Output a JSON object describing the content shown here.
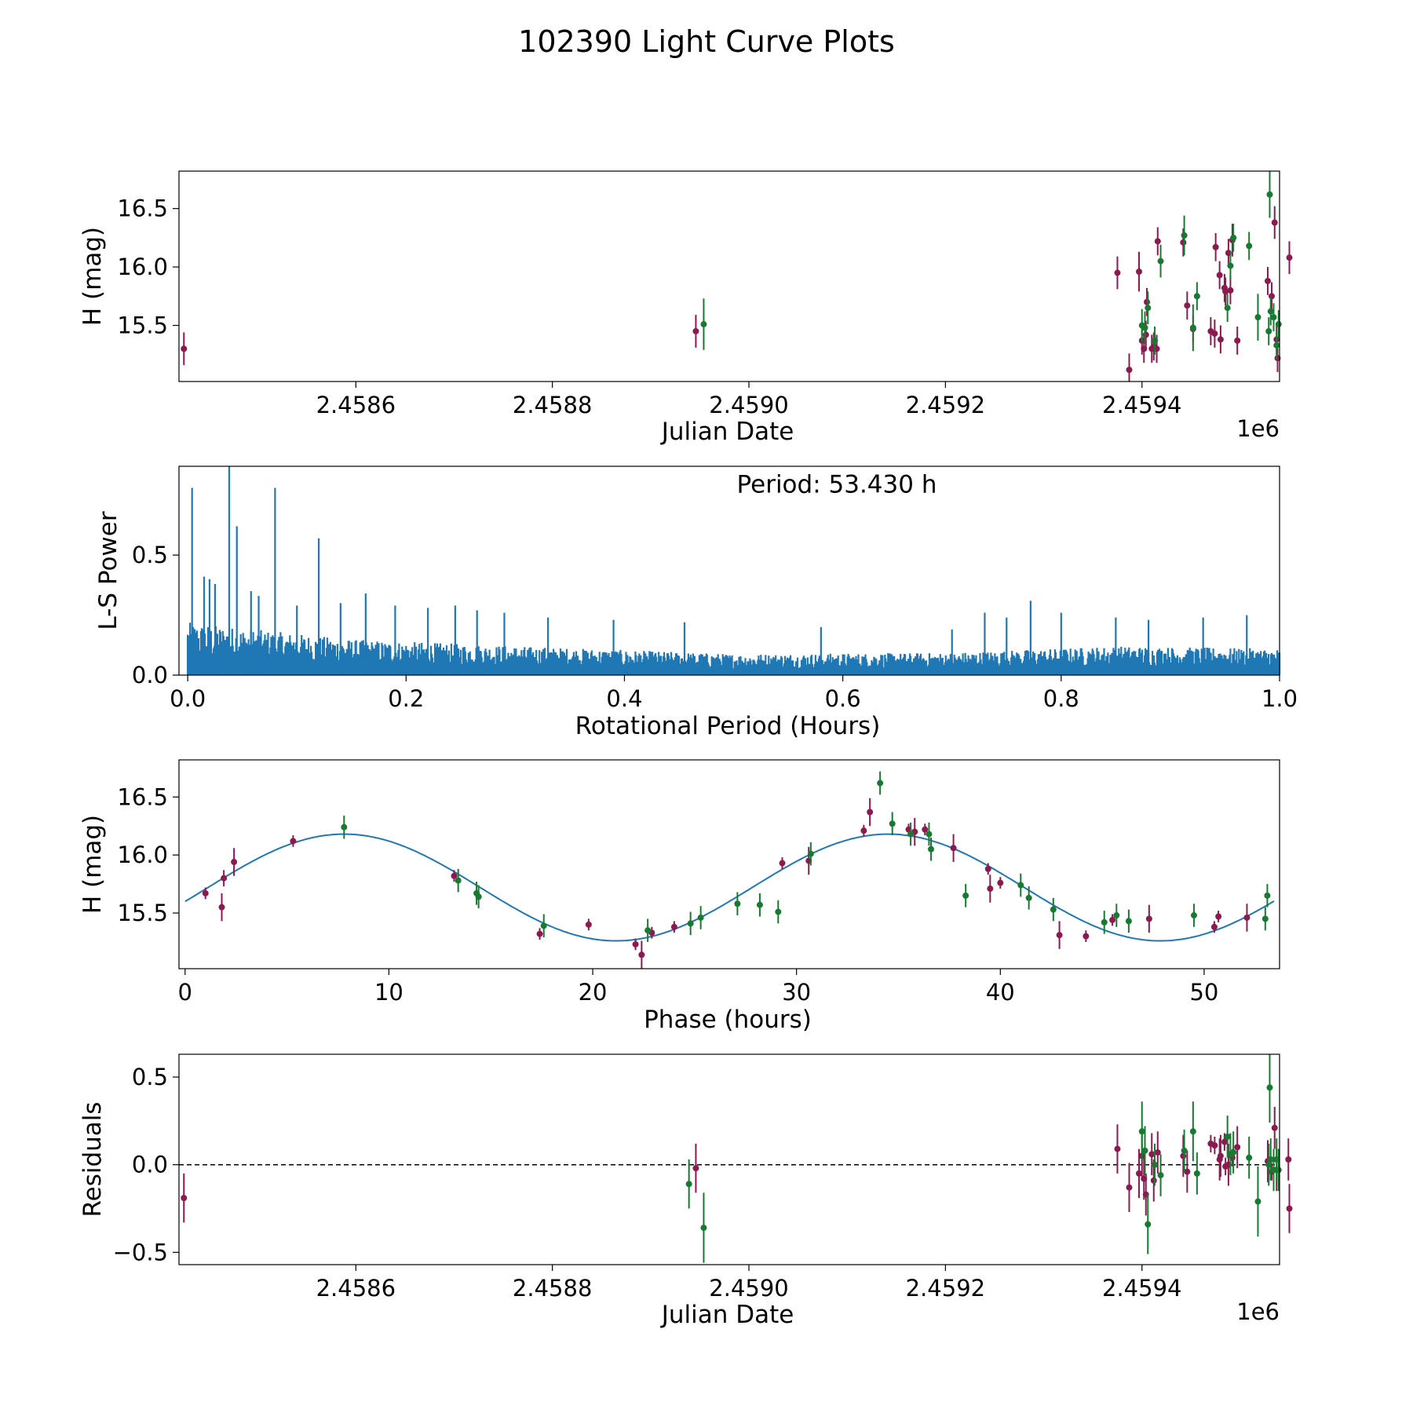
{
  "title": "102390 Light Curve Plots",
  "colors": {
    "magenta": "#8b1a50",
    "green": "#187a32",
    "line": "#1f77b4",
    "axis": "#000000"
  },
  "chart_data": [
    {
      "type": "scatter",
      "name": "light-curve",
      "xlabel": "Julian Date",
      "ylabel": "H (mag)",
      "offset_label": "1e6",
      "xlim": [
        2458420,
        2459540
      ],
      "ylim": [
        15.02,
        16.82
      ],
      "xticks": [
        2458600,
        2458800,
        2459000,
        2459200,
        2459400
      ],
      "xtick_labels": [
        "2.4586",
        "2.4588",
        "2.4590",
        "2.4592",
        "2.4594"
      ],
      "yticks": [
        15.5,
        16.0,
        16.5
      ],
      "ytick_labels": [
        "15.5",
        "16.0",
        "16.5"
      ],
      "series": [
        {
          "name": "magenta",
          "color": "#8b1a50",
          "x": [
            2458425,
            2458946,
            2459375,
            2459387,
            2459397,
            2459400,
            2459402,
            2459404,
            2459405,
            2459410,
            2459412,
            2459415,
            2459416,
            2459442,
            2459446,
            2459452,
            2459470,
            2459474,
            2459475,
            2459479,
            2459480,
            2459484,
            2459485,
            2459488,
            2459490,
            2459492,
            2459497,
            2459528,
            2459532,
            2459535,
            2459537,
            2459538,
            2459550
          ],
          "y": [
            15.3,
            15.45,
            15.95,
            15.12,
            15.96,
            15.37,
            15.3,
            15.42,
            15.7,
            15.3,
            15.32,
            15.3,
            16.22,
            16.21,
            15.67,
            15.47,
            15.45,
            15.43,
            16.17,
            15.93,
            15.38,
            15.82,
            15.79,
            16.12,
            15.8,
            16.23,
            15.37,
            15.88,
            15.75,
            16.38,
            15.38,
            15.22,
            16.08
          ],
          "err": [
            0.14,
            0.14,
            0.14,
            0.14,
            0.17,
            0.12,
            0.12,
            0.12,
            0.12,
            0.12,
            0.12,
            0.12,
            0.12,
            0.12,
            0.12,
            0.12,
            0.12,
            0.12,
            0.12,
            0.12,
            0.12,
            0.12,
            0.12,
            0.12,
            0.12,
            0.14,
            0.12,
            0.12,
            0.12,
            0.14,
            0.12,
            0.12,
            0.14
          ]
        },
        {
          "name": "green",
          "color": "#187a32",
          "x": [
            2458954,
            2459400,
            2459403,
            2459406,
            2459413,
            2459419,
            2459443,
            2459452,
            2459456,
            2459487,
            2459490,
            2459493,
            2459509,
            2459518,
            2459529,
            2459530,
            2459531,
            2459534,
            2459537,
            2459539
          ],
          "y": [
            15.51,
            15.5,
            15.48,
            15.65,
            15.37,
            16.05,
            16.27,
            15.48,
            15.75,
            15.65,
            16.01,
            16.25,
            16.18,
            15.57,
            15.45,
            16.62,
            15.62,
            15.57,
            15.33,
            15.51
          ],
          "err": [
            0.22,
            0.14,
            0.14,
            0.14,
            0.12,
            0.14,
            0.17,
            0.2,
            0.12,
            0.12,
            0.12,
            0.12,
            0.12,
            0.2,
            0.12,
            0.2,
            0.12,
            0.12,
            0.12,
            0.12
          ]
        }
      ]
    },
    {
      "type": "line",
      "name": "periodogram",
      "xlabel": "Rotational Period (Hours)",
      "ylabel": "L-S Power",
      "annotation": "Period: 53.430 h",
      "xlim": [
        -0.008,
        1.0
      ],
      "ylim": [
        0,
        0.87
      ],
      "xticks": [
        0.0,
        0.2,
        0.4,
        0.6,
        0.8,
        1.0
      ],
      "xtick_labels": [
        "0.0",
        "0.2",
        "0.4",
        "0.6",
        "0.8",
        "1.0"
      ],
      "yticks": [
        0.0,
        0.5
      ],
      "ytick_labels": [
        "0.0",
        "0.5"
      ],
      "baseline": [
        [
          0.0,
          0.2
        ],
        [
          0.15,
          0.135
        ],
        [
          0.3,
          0.11
        ],
        [
          0.5,
          0.08
        ],
        [
          0.7,
          0.085
        ],
        [
          0.85,
          0.11
        ],
        [
          1.0,
          0.1
        ]
      ],
      "peaks": [
        [
          0.004,
          0.78
        ],
        [
          0.015,
          0.41
        ],
        [
          0.02,
          0.4
        ],
        [
          0.025,
          0.38
        ],
        [
          0.038,
          0.93
        ],
        [
          0.045,
          0.62
        ],
        [
          0.058,
          0.35
        ],
        [
          0.065,
          0.33
        ],
        [
          0.08,
          0.78
        ],
        [
          0.1,
          0.29
        ],
        [
          0.12,
          0.57
        ],
        [
          0.14,
          0.3
        ],
        [
          0.163,
          0.34
        ],
        [
          0.19,
          0.29
        ],
        [
          0.22,
          0.28
        ],
        [
          0.245,
          0.29
        ],
        [
          0.265,
          0.27
        ],
        [
          0.29,
          0.26
        ],
        [
          0.33,
          0.24
        ],
        [
          0.39,
          0.23
        ],
        [
          0.455,
          0.22
        ],
        [
          0.58,
          0.2
        ],
        [
          0.7,
          0.19
        ],
        [
          0.73,
          0.26
        ],
        [
          0.75,
          0.24
        ],
        [
          0.772,
          0.31
        ],
        [
          0.8,
          0.26
        ],
        [
          0.85,
          0.24
        ],
        [
          0.88,
          0.23
        ],
        [
          0.93,
          0.24
        ],
        [
          0.97,
          0.25
        ]
      ]
    },
    {
      "type": "scatter",
      "name": "phase-curve",
      "xlabel": "Phase (hours)",
      "ylabel": "H (mag)",
      "xlim": [
        -0.3,
        53.7
      ],
      "ylim": [
        15.02,
        16.82
      ],
      "xticks": [
        0,
        10,
        20,
        30,
        40,
        50
      ],
      "xtick_labels": [
        "0",
        "10",
        "20",
        "30",
        "40",
        "50"
      ],
      "yticks": [
        15.5,
        16.0,
        16.5
      ],
      "ytick_labels": [
        "15.5",
        "16.0",
        "16.5"
      ],
      "fit": {
        "mean": 15.72,
        "amplitude": 0.46,
        "period": 26.7,
        "peak_at": 7.8
      },
      "series": [
        {
          "name": "magenta",
          "color": "#8b1a50",
          "x": [
            1.0,
            1.8,
            1.9,
            2.4,
            5.3,
            13.2,
            17.4,
            19.8,
            22.1,
            22.4,
            22.9,
            24.0,
            29.3,
            30.6,
            33.3,
            33.6,
            35.5,
            35.8,
            36.3,
            37.7,
            39.4,
            39.5,
            40.0,
            42.9,
            44.2,
            45.5,
            47.3,
            50.5,
            50.7,
            52.1
          ],
          "y": [
            15.67,
            15.55,
            15.8,
            15.94,
            16.12,
            15.82,
            15.32,
            15.4,
            15.23,
            15.14,
            15.33,
            15.38,
            15.93,
            15.95,
            16.21,
            16.37,
            16.22,
            16.2,
            16.22,
            16.06,
            15.88,
            15.71,
            15.76,
            15.31,
            15.3,
            15.44,
            15.45,
            15.38,
            15.47,
            15.46
          ],
          "err": [
            0.05,
            0.12,
            0.07,
            0.12,
            0.05,
            0.05,
            0.05,
            0.05,
            0.05,
            0.12,
            0.05,
            0.05,
            0.05,
            0.12,
            0.05,
            0.12,
            0.05,
            0.12,
            0.05,
            0.12,
            0.05,
            0.12,
            0.05,
            0.12,
            0.05,
            0.05,
            0.12,
            0.05,
            0.05,
            0.12
          ]
        },
        {
          "name": "green",
          "color": "#187a32",
          "x": [
            7.8,
            13.4,
            14.3,
            14.4,
            17.6,
            22.7,
            24.8,
            25.3,
            27.1,
            28.2,
            29.1,
            30.7,
            34.1,
            34.7,
            35.6,
            36.5,
            36.6,
            38.3,
            41.0,
            41.4,
            42.6,
            45.1,
            45.7,
            46.3,
            49.5,
            53.0,
            53.1
          ],
          "y": [
            16.24,
            15.78,
            15.67,
            15.64,
            15.39,
            15.35,
            15.41,
            15.46,
            15.58,
            15.57,
            15.51,
            16.01,
            16.62,
            16.27,
            16.18,
            16.18,
            16.05,
            15.65,
            15.74,
            15.63,
            15.53,
            15.42,
            15.48,
            15.43,
            15.48,
            15.45,
            15.65
          ]
        }
      ]
    },
    {
      "type": "scatter",
      "name": "residuals",
      "xlabel": "Julian Date",
      "ylabel": "Residuals",
      "offset_label": "1e6",
      "xlim": [
        2458420,
        2459540
      ],
      "ylim": [
        -0.57,
        0.63
      ],
      "xticks": [
        2458600,
        2458800,
        2459000,
        2459200,
        2459400
      ],
      "xtick_labels": [
        "2.4586",
        "2.4588",
        "2.4590",
        "2.4592",
        "2.4594"
      ],
      "yticks": [
        -0.5,
        0.0,
        0.5
      ],
      "ytick_labels": [
        "−0.5",
        "0.0",
        "0.5"
      ],
      "reference_line": 0.0,
      "series": [
        {
          "name": "magenta",
          "color": "#8b1a50",
          "x": [
            2458425,
            2458946,
            2459375,
            2459387,
            2459397,
            2459400,
            2459402,
            2459404,
            2459410,
            2459412,
            2459416,
            2459442,
            2459446,
            2459470,
            2459474,
            2459479,
            2459480,
            2459484,
            2459485,
            2459488,
            2459492,
            2459497,
            2459528,
            2459532,
            2459535,
            2459537,
            2459549,
            2459550
          ],
          "y": [
            -0.19,
            -0.02,
            0.09,
            -0.13,
            -0.05,
            0.05,
            -0.08,
            -0.17,
            0.06,
            -0.09,
            0.07,
            0.05,
            -0.04,
            0.12,
            0.11,
            0.03,
            0.05,
            0.13,
            -0.01,
            0.0,
            0.04,
            0.1,
            0.02,
            -0.04,
            0.21,
            -0.03,
            0.03,
            -0.25
          ],
          "err": [
            0.14,
            0.14,
            0.14,
            0.14,
            0.14,
            0.14,
            0.12,
            0.12,
            0.12,
            0.12,
            0.12,
            0.12,
            0.12,
            0.05,
            0.05,
            0.12,
            0.12,
            0.05,
            0.05,
            0.12,
            0.05,
            0.12,
            0.12,
            0.05,
            0.12,
            0.12,
            0.12,
            0.14
          ]
        },
        {
          "name": "green",
          "color": "#187a32",
          "x": [
            2458939,
            2458954,
            2459400,
            2459403,
            2459406,
            2459413,
            2459419,
            2459443,
            2459452,
            2459456,
            2459487,
            2459490,
            2459493,
            2459509,
            2459518,
            2459529,
            2459530,
            2459531,
            2459534,
            2459537,
            2459539
          ],
          "y": [
            -0.11,
            -0.36,
            0.19,
            0.08,
            -0.34,
            0.0,
            -0.06,
            0.08,
            0.19,
            -0.05,
            0.16,
            0.06,
            0.07,
            0.04,
            -0.21,
            0.0,
            0.44,
            0.03,
            -0.03,
            0.03,
            -0.03
          ],
          "err": [
            0.14,
            0.2,
            0.17,
            0.14,
            0.17,
            0.12,
            0.12,
            0.12,
            0.17,
            0.12,
            0.12,
            0.12,
            0.12,
            0.12,
            0.2,
            0.12,
            0.2,
            0.12,
            0.12,
            0.12,
            0.12
          ]
        }
      ]
    }
  ]
}
